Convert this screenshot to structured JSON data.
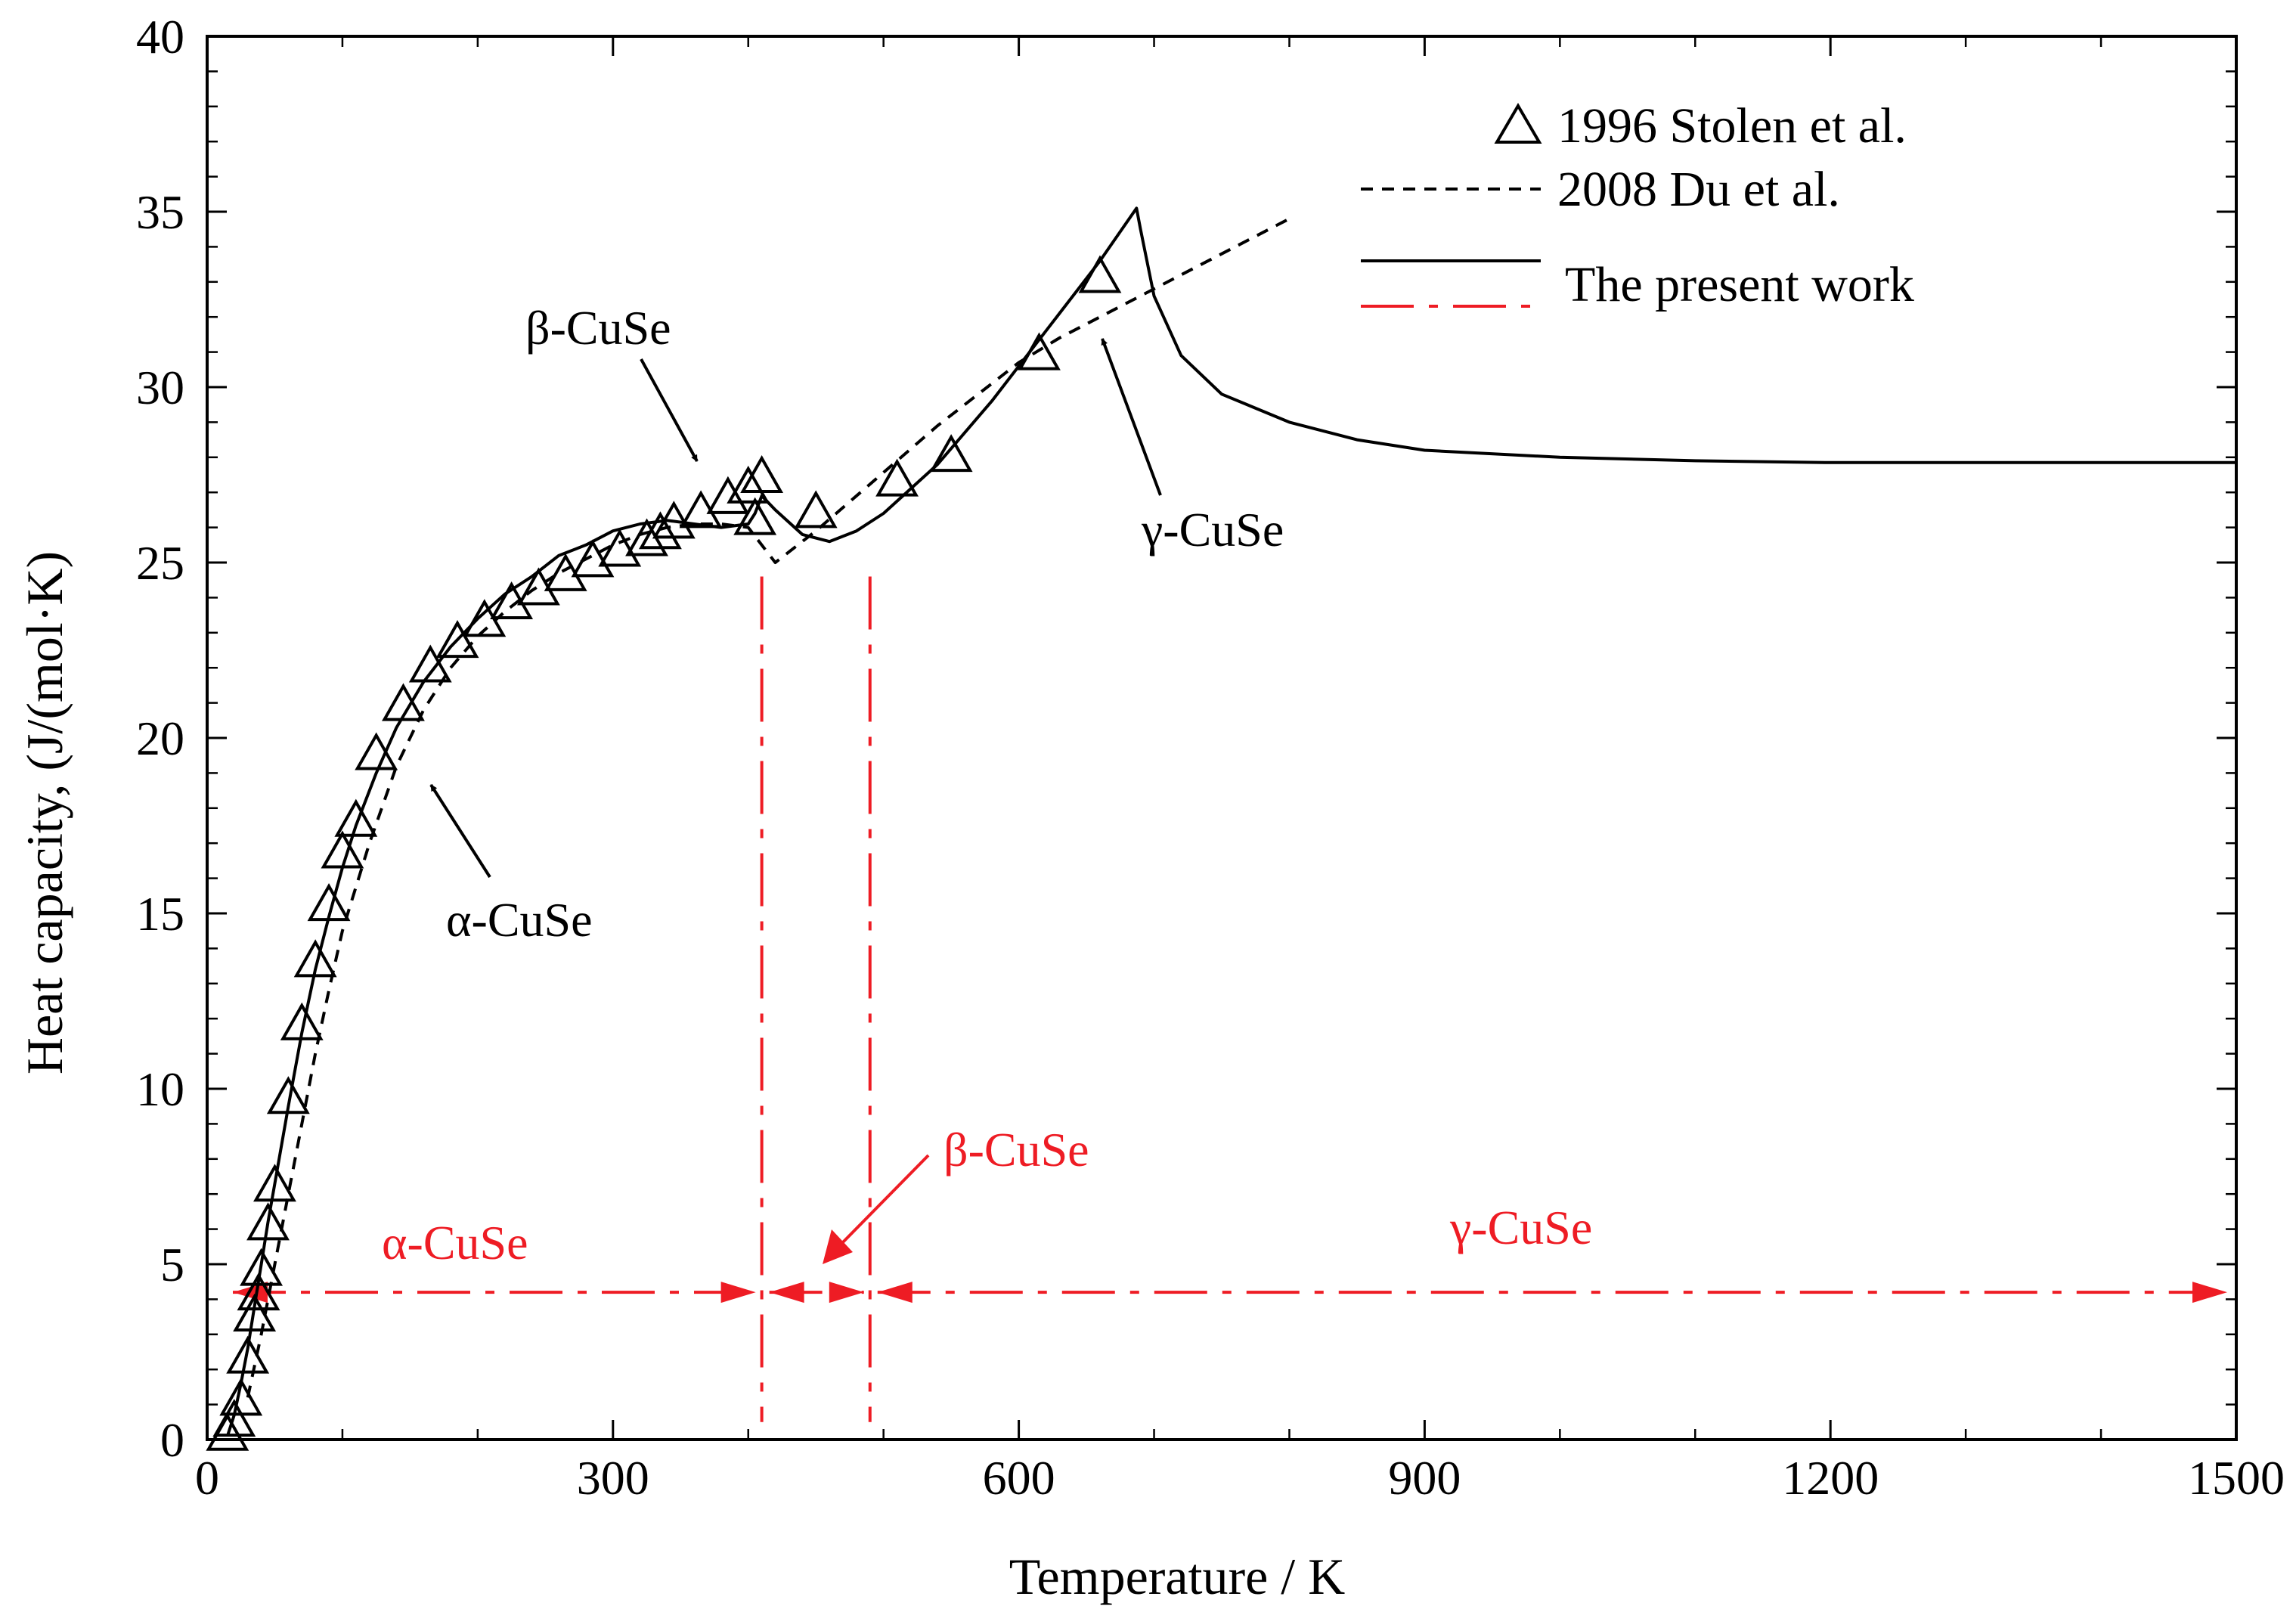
{
  "colors": {
    "axis": "#000000",
    "phase_red": "#ee1c24"
  },
  "chart_data": {
    "type": "line",
    "title": "",
    "xlabel": "Temperature  / K",
    "ylabel": "Heat capacity, (J/(mol·K)",
    "xlim": [
      0,
      1500
    ],
    "ylim": [
      0,
      40
    ],
    "xticks": [
      0,
      300,
      600,
      900,
      1200,
      1500
    ],
    "yticks": [
      0,
      5,
      10,
      15,
      20,
      25,
      30,
      35,
      40
    ],
    "legend_position": "top-right",
    "series": [
      {
        "name": "1996 Stolen et al.",
        "kind": "scatter",
        "marker": "triangle-open",
        "x": [
          15,
          20,
          25,
          30,
          35,
          38,
          40,
          45,
          50,
          60,
          70,
          80,
          90,
          100,
          110,
          125,
          145,
          165,
          185,
          205,
          225,
          245,
          265,
          285,
          305,
          325,
          335,
          345,
          365,
          385,
          400,
          405,
          410,
          450,
          510,
          550,
          615,
          660
        ],
        "y": [
          0.2,
          0.6,
          1.2,
          2.4,
          3.6,
          4.2,
          4.9,
          6.2,
          7.3,
          9.8,
          11.9,
          13.7,
          15.3,
          16.8,
          17.7,
          19.6,
          21.0,
          22.1,
          22.8,
          23.4,
          23.9,
          24.3,
          24.7,
          25.1,
          25.4,
          25.7,
          25.9,
          26.2,
          26.5,
          26.9,
          27.2,
          26.3,
          27.5,
          26.5,
          27.4,
          28.1,
          31.0,
          33.2
        ]
      },
      {
        "name": "2008 Du et al.",
        "kind": "line",
        "style": "dashed",
        "x": [
          30,
          40,
          50,
          60,
          70,
          80,
          90,
          100,
          120,
          140,
          160,
          180,
          200,
          220,
          240,
          260,
          280,
          300,
          320,
          340,
          360,
          380,
          400,
          420,
          450,
          480,
          510,
          540,
          570,
          600,
          630,
          660,
          690,
          720,
          760,
          800
        ],
        "y": [
          1.2,
          3.0,
          5.0,
          7.0,
          9.0,
          11.0,
          12.8,
          14.5,
          17.0,
          19.2,
          20.8,
          22.0,
          22.9,
          23.6,
          24.2,
          24.7,
          25.1,
          25.5,
          25.8,
          26.0,
          26.1,
          26.1,
          26.0,
          25.0,
          25.9,
          26.9,
          27.9,
          28.9,
          29.8,
          30.7,
          31.4,
          32.0,
          32.6,
          33.2,
          34.0,
          34.8
        ]
      },
      {
        "name": "The present work",
        "kind": "line",
        "style": "solid",
        "x": [
          15,
          20,
          25,
          30,
          35,
          40,
          45,
          50,
          60,
          70,
          80,
          90,
          100,
          110,
          125,
          140,
          160,
          180,
          200,
          220,
          240,
          260,
          280,
          300,
          320,
          340,
          360,
          380,
          400,
          405,
          410,
          420,
          440,
          460,
          480,
          500,
          540,
          580,
          620,
          660,
          687,
          690,
          700,
          720,
          750,
          800,
          850,
          900,
          1000,
          1100,
          1200,
          1300,
          1400,
          1500
        ],
        "y": [
          0.1,
          0.7,
          1.6,
          2.6,
          3.8,
          5.0,
          6.2,
          7.3,
          9.5,
          11.6,
          13.4,
          14.9,
          16.3,
          17.5,
          19.0,
          20.3,
          21.6,
          22.6,
          23.4,
          24.1,
          24.6,
          25.2,
          25.5,
          25.9,
          26.1,
          26.2,
          26.1,
          26.0,
          26.1,
          26.4,
          26.9,
          26.5,
          25.8,
          25.6,
          25.9,
          26.4,
          27.8,
          29.6,
          31.6,
          33.6,
          35.1,
          34.5,
          32.6,
          30.9,
          29.8,
          29.0,
          28.5,
          28.2,
          28.0,
          27.9,
          27.85,
          27.85,
          27.85,
          27.85
        ]
      }
    ],
    "phase_boundaries_K": [
      410,
      490
    ],
    "phase_ranges": [
      {
        "label": "α-CuSe",
        "from": 0,
        "to": 410
      },
      {
        "label": "β-CuSe",
        "from": 410,
        "to": 490
      },
      {
        "label": "γ-CuSe",
        "from": 490,
        "to": 1500
      }
    ]
  },
  "legend": {
    "stolen": "1996 Stolen et al.",
    "du": "2008 Du et al.",
    "present": "The present work"
  },
  "annotations": {
    "beta_black": "β-CuSe",
    "alpha_black": "α-CuSe",
    "gamma_black": "γ-CuSe",
    "alpha_red": "α-CuSe",
    "beta_red": "β-CuSe",
    "gamma_red": "γ-CuSe"
  }
}
